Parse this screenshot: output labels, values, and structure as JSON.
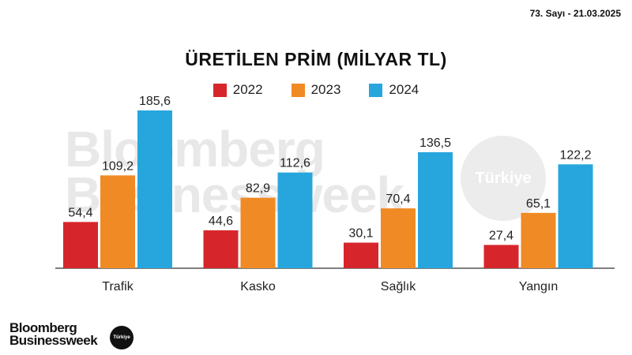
{
  "issue_line": "73. Sayı - 21.03.2025",
  "watermark": {
    "line1": "Bloomberg",
    "line2": "Businessweek",
    "badge": "Türkiye"
  },
  "footer": {
    "line1": "Bloomberg",
    "line2": "Businessweek",
    "badge": "Türkiye"
  },
  "colors": {
    "2022": "#d7262b",
    "2023": "#f08a24",
    "2024": "#27a6dd"
  },
  "chart_data": {
    "type": "bar",
    "title": "ÜRETİLEN PRİM (MİLYAR TL)",
    "categories": [
      "Trafik",
      "Kasko",
      "Sağlık",
      "Yangın"
    ],
    "series": [
      {
        "name": "2022",
        "values": [
          54.4,
          44.6,
          30.1,
          27.4
        ],
        "labels": [
          "54,4",
          "44,6",
          "30,1",
          "27,4"
        ]
      },
      {
        "name": "2023",
        "values": [
          109.2,
          82.9,
          70.4,
          65.1
        ],
        "labels": [
          "109,2",
          "82,9",
          "70,4",
          "65,1"
        ]
      },
      {
        "name": "2024",
        "values": [
          185.6,
          112.6,
          136.5,
          122.2
        ],
        "labels": [
          "185,6",
          "112,6",
          "136,5",
          "122,2"
        ]
      }
    ],
    "ylim": [
      0,
      185.6
    ],
    "grid": false,
    "legend_position": "top-center"
  }
}
